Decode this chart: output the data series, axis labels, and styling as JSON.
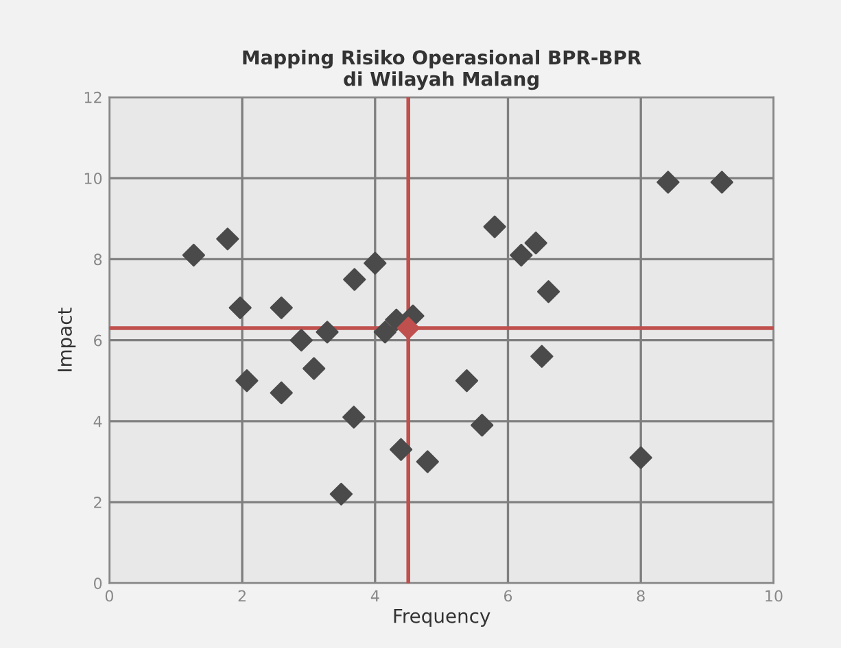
{
  "chart_data": {
    "type": "scatter",
    "title": "Mapping Risiko Operasional BPR-BPR\ndi Wilayah Malang",
    "xlabel": "Frequency",
    "ylabel": "Impact",
    "xlim": [
      0,
      10
    ],
    "xticks": [
      0,
      2,
      4,
      6,
      8,
      10
    ],
    "ylim": [
      0,
      12
    ],
    "yticks": [
      0,
      2,
      4,
      6,
      8,
      10,
      12
    ],
    "grid": true,
    "marker": "diamond",
    "series": [
      {
        "color": "#4a4a4a",
        "x": [
          1.27,
          1.78,
          4.0,
          3.69,
          1.97,
          2.59,
          3.28,
          2.89,
          4.15,
          4.32,
          4.57,
          3.08,
          2.07,
          2.59,
          3.68,
          4.39,
          4.79,
          3.49,
          5.8,
          6.2,
          6.42,
          6.61,
          6.51,
          5.38,
          5.61,
          8.0,
          8.41,
          9.22
        ],
        "values": [
          8.1,
          8.5,
          7.9,
          7.5,
          6.8,
          6.8,
          6.2,
          6.0,
          6.2,
          6.5,
          6.6,
          5.3,
          5.0,
          4.7,
          4.1,
          3.3,
          3.0,
          2.2,
          8.8,
          8.1,
          8.4,
          7.2,
          5.6,
          5.0,
          3.9,
          3.1,
          9.9,
          9.9
        ]
      },
      {
        "color": "#c0504d",
        "x": [
          4.5
        ],
        "values": [
          6.3
        ]
      }
    ],
    "ref_lines": [
      {
        "axis": "x",
        "value": 4.5,
        "color": "#c0504d"
      },
      {
        "axis": "y",
        "value": 6.3,
        "color": "#c0504d"
      }
    ]
  }
}
